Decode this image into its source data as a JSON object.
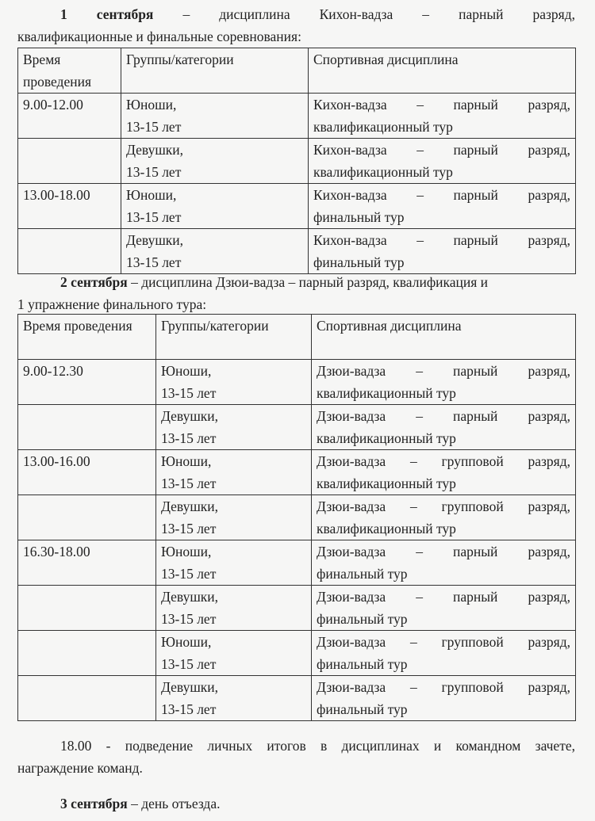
{
  "day1": {
    "date": "1 сентября",
    "intro_rest": " – дисциплина Кихон-вадза – парный разряд,",
    "intro_line2": "квалификационные и финальные соревнования:",
    "headers": [
      "Время проведения",
      "Группы/категории",
      "Спортивная дисциплина"
    ],
    "rows": [
      {
        "time": "9.00-12.00",
        "group": [
          "Юноши,",
          "13-15 лет"
        ],
        "disc": [
          "Кихон-вадза – парный разряд,",
          "квалификационный тур"
        ]
      },
      {
        "time": "",
        "group": [
          "Девушки,",
          "13-15 лет"
        ],
        "disc": [
          "Кихон-вадза – парный разряд,",
          "квалификационный тур"
        ]
      },
      {
        "time": "13.00-18.00",
        "group": [
          "Юноши,",
          "13-15 лет"
        ],
        "disc": [
          "Кихон-вадза – парный разряд,",
          "финальный тур"
        ]
      },
      {
        "time": "",
        "group": [
          "Девушки,",
          "13-15 лет"
        ],
        "disc": [
          "Кихон-вадза – парный разряд,",
          "финальный тур"
        ]
      }
    ]
  },
  "day2": {
    "date": "2 сентября",
    "intro_rest": " – дисциплина Дзюи-вадза – парный разряд, квалификация и",
    "intro_line2": "1 упражнение финального тура:",
    "headers": [
      "Время проведения",
      "Группы/категории",
      "Спортивная дисциплина"
    ],
    "rows": [
      {
        "time": "9.00-12.30",
        "group": [
          "Юноши,",
          "13-15 лет"
        ],
        "disc": [
          "Дзюи-вадза – парный разряд,",
          "квалификационный тур"
        ]
      },
      {
        "time": "",
        "group": [
          "Девушки,",
          "13-15 лет"
        ],
        "disc": [
          "Дзюи-вадза – парный разряд,",
          "квалификационный тур"
        ]
      },
      {
        "time": "13.00-16.00",
        "group": [
          "Юноши,",
          "13-15 лет"
        ],
        "disc": [
          "Дзюи-вадза – групповой разряд,",
          "квалификационный тур"
        ]
      },
      {
        "time": "",
        "group": [
          "Девушки,",
          "13-15 лет"
        ],
        "disc": [
          "Дзюи-вадза – групповой разряд,",
          "квалификационный тур"
        ]
      },
      {
        "time": "16.30-18.00",
        "group": [
          "Юноши,",
          "13-15 лет"
        ],
        "disc": [
          "Дзюи-вадза – парный разряд,",
          "финальный тур"
        ]
      },
      {
        "time": "",
        "group": [
          "Девушки,",
          "13-15 лет"
        ],
        "disc": [
          "Дзюи-вадза – парный разряд,",
          "финальный тур"
        ]
      },
      {
        "time": "",
        "group": [
          "Юноши,",
          "13-15 лет"
        ],
        "disc": [
          "Дзюи-вадза – групповой разряд,",
          "финальный тур"
        ]
      },
      {
        "time": "",
        "group": [
          "Девушки,",
          "13-15 лет"
        ],
        "disc": [
          "Дзюи-вадза – групповой разряд,",
          "финальный тур"
        ]
      }
    ]
  },
  "summary": {
    "line1": "18.00 - подведение личных итогов в дисциплинах и командном зачете,",
    "line2": "награждение команд."
  },
  "day3": {
    "date": "3 сентября",
    "rest": " – день отъезда."
  }
}
